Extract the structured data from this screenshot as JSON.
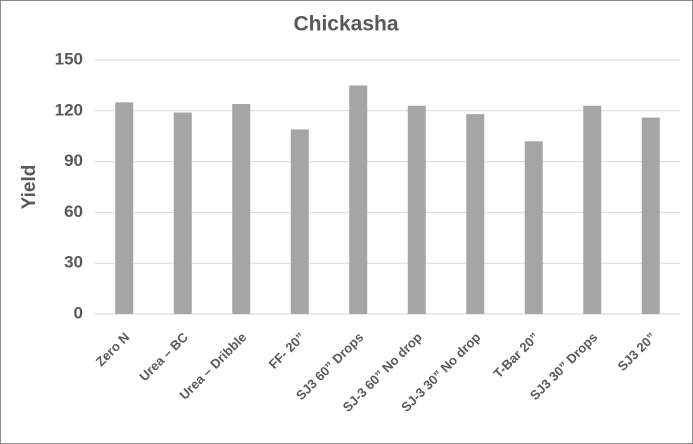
{
  "chart_data": {
    "type": "bar",
    "title": "Chickasha",
    "y_label": "Yield",
    "categories": [
      "Zero N",
      "Urea – BC",
      "Urea – Dribble",
      "FF- 20”",
      "SJ3 60” Drops",
      "SJ-3 60” No drop",
      "SJ-3 30” No drop",
      "T-Bar 20”",
      "SJ3 30” Drops",
      "SJ3 20”"
    ],
    "values": [
      125,
      119,
      124,
      109,
      135,
      123,
      118,
      102,
      123,
      116
    ],
    "color": "#a5a5a5",
    "ylim": [
      0,
      150
    ],
    "yticks": [
      0,
      30,
      60,
      90,
      120,
      150
    ],
    "grid": true
  }
}
